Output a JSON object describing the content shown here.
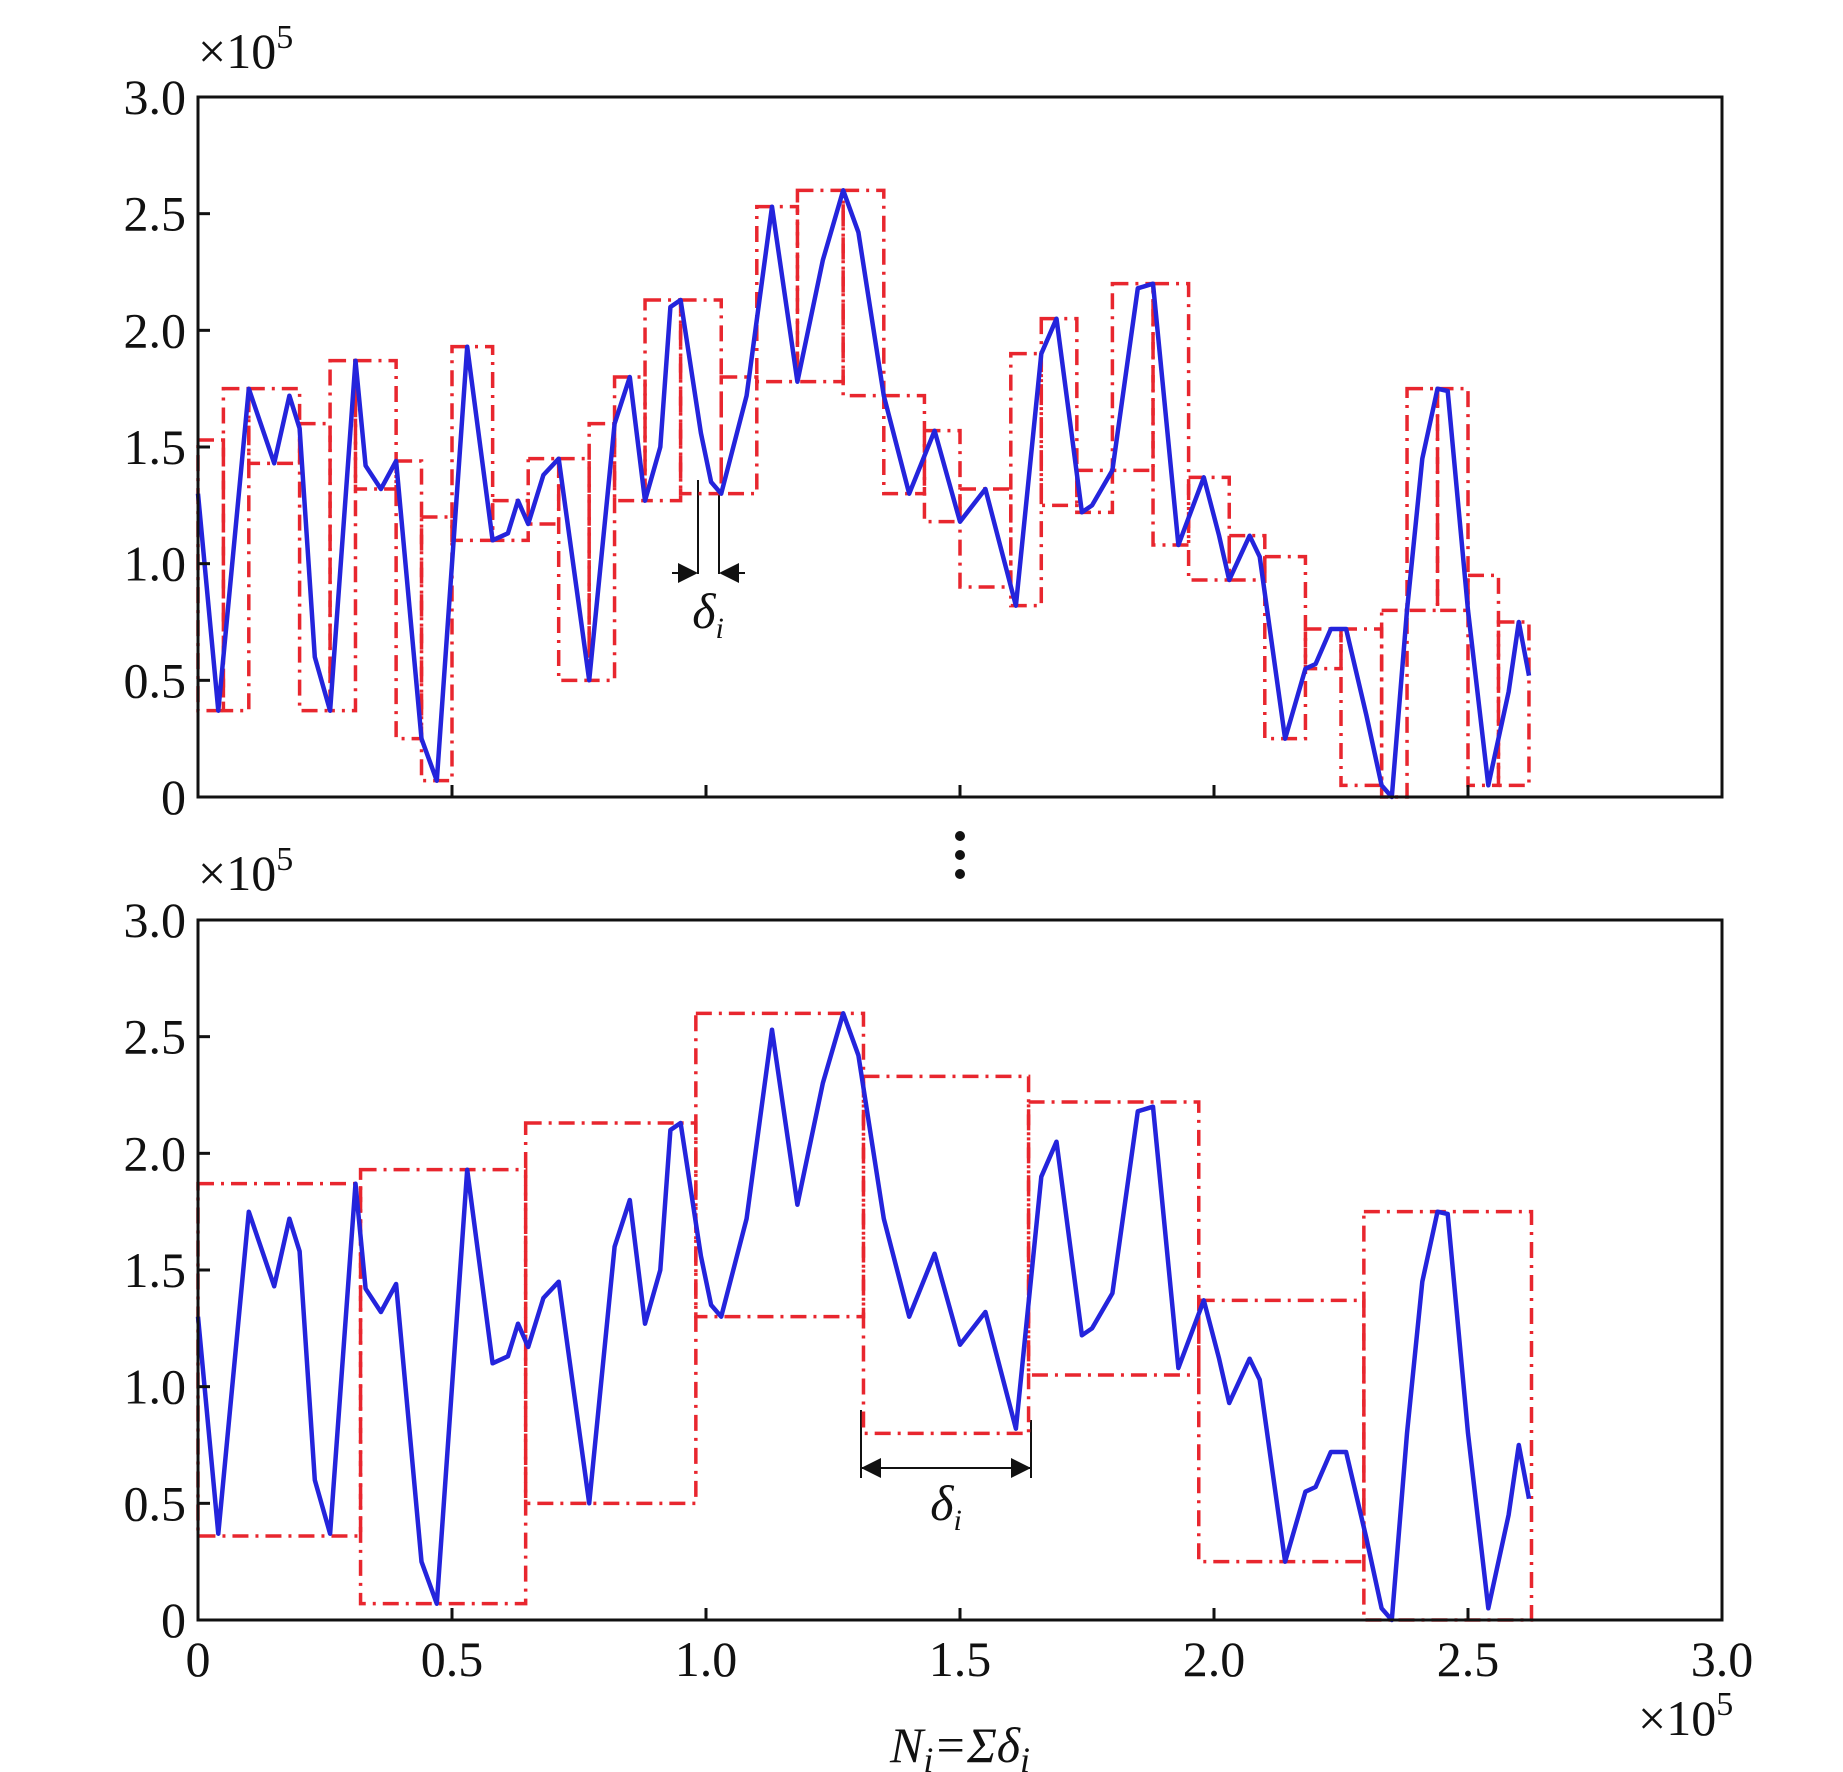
{
  "chart_data": {
    "type": "line",
    "multiplier": {
      "base": "×10",
      "exponent": "5"
    },
    "xlabel": {
      "n": "N",
      "sub1": "i",
      "eq": "=Σδ",
      "sub2": "i"
    },
    "delta": {
      "symbol": "δ",
      "subscript": "i"
    },
    "xlim": [
      0,
      3
    ],
    "ylim": [
      0,
      3
    ],
    "xticks": [
      0,
      0.5,
      {
        "value": 1,
        "label": "1.0"
      },
      1.5,
      {
        "value": 2,
        "label": "2.0"
      },
      2.5,
      {
        "value": 3,
        "label": "3.0"
      }
    ],
    "yticks": [
      0,
      0.5,
      {
        "value": 1,
        "label": "1.0"
      },
      1.5,
      {
        "value": 2,
        "label": "2.0"
      },
      2.5,
      {
        "value": 3,
        "label": "3.0"
      }
    ],
    "color": "#2424dc",
    "window_color": "#e8262e",
    "x": [
      0,
      0.04,
      0.1,
      0.15,
      0.18,
      0.2,
      0.23,
      0.26,
      0.31,
      0.33,
      0.36,
      0.39,
      0.44,
      0.47,
      0.53,
      0.58,
      0.61,
      0.63,
      0.65,
      0.68,
      0.71,
      0.77,
      0.82,
      0.85,
      0.88,
      0.91,
      0.93,
      0.95,
      0.99,
      1.01,
      1.03,
      1.08,
      1.13,
      1.18,
      1.23,
      1.27,
      1.3,
      1.35,
      1.4,
      1.45,
      1.5,
      1.55,
      1.61,
      1.66,
      1.69,
      1.74,
      1.76,
      1.8,
      1.85,
      1.88,
      1.93,
      1.98,
      2.01,
      2.03,
      2.07,
      2.09,
      2.14,
      2.18,
      2.2,
      2.23,
      2.26,
      2.3,
      2.33,
      2.35,
      2.38,
      2.41,
      2.44,
      2.46,
      2.5,
      2.54,
      2.58,
      2.6,
      2.62
    ],
    "values": [
      1.3,
      0.37,
      1.75,
      1.43,
      1.72,
      1.58,
      0.6,
      0.37,
      1.87,
      1.42,
      1.32,
      1.44,
      0.25,
      0.07,
      1.93,
      1.1,
      1.13,
      1.27,
      1.17,
      1.38,
      1.45,
      0.5,
      1.6,
      1.8,
      1.27,
      1.5,
      2.1,
      2.13,
      1.56,
      1.35,
      1.3,
      1.72,
      2.53,
      1.78,
      2.3,
      2.6,
      2.42,
      1.72,
      1.3,
      1.57,
      1.18,
      1.32,
      0.82,
      1.9,
      2.05,
      1.22,
      1.25,
      1.4,
      2.18,
      2.2,
      1.08,
      1.37,
      1.12,
      0.93,
      1.12,
      1.03,
      0.25,
      0.55,
      0.57,
      0.72,
      0.72,
      0.35,
      0.05,
      0,
      0.8,
      1.45,
      1.75,
      1.74,
      0.8,
      0.05,
      0.45,
      0.75,
      0.52
    ],
    "windows_top": {
      "x0": [
        0,
        0.05,
        0.1,
        0.2,
        0.26,
        0.31,
        0.39,
        0.44,
        0.5,
        0.58,
        0.65,
        0.71,
        0.77,
        0.82,
        0.88,
        0.95,
        1.03,
        1.1,
        1.18,
        1.27,
        1.35,
        1.43,
        1.5,
        1.6,
        1.66,
        1.73,
        1.8,
        1.88,
        1.95,
        2.03,
        2.1,
        2.18,
        2.25,
        2.33,
        2.38,
        2.44,
        2.5,
        2.56
      ],
      "x1": [
        0.05,
        0.1,
        0.2,
        0.26,
        0.31,
        0.39,
        0.44,
        0.5,
        0.58,
        0.65,
        0.71,
        0.77,
        0.82,
        0.88,
        0.95,
        1.03,
        1.1,
        1.18,
        1.27,
        1.35,
        1.43,
        1.5,
        1.6,
        1.66,
        1.73,
        1.8,
        1.88,
        1.95,
        2.03,
        2.1,
        2.18,
        2.25,
        2.33,
        2.38,
        2.44,
        2.5,
        2.56,
        2.62
      ],
      "low": [
        0.37,
        0.37,
        1.43,
        0.37,
        0.37,
        1.32,
        0.25,
        0.07,
        1.1,
        1.1,
        1.17,
        0.5,
        0.5,
        1.27,
        1.27,
        1.3,
        1.3,
        1.78,
        1.78,
        1.72,
        1.3,
        1.18,
        0.9,
        0.82,
        1.25,
        1.22,
        1.4,
        1.08,
        0.93,
        0.93,
        0.25,
        0.55,
        0.05,
        0,
        0.8,
        0.8,
        0.05,
        0.05
      ],
      "high": [
        1.53,
        1.75,
        1.75,
        1.6,
        1.87,
        1.87,
        1.44,
        1.2,
        1.93,
        1.27,
        1.45,
        1.45,
        1.6,
        1.8,
        2.13,
        2.13,
        1.8,
        2.53,
        2.6,
        2.6,
        1.72,
        1.57,
        1.32,
        1.9,
        2.05,
        1.4,
        2.2,
        2.2,
        1.37,
        1.12,
        1.03,
        0.72,
        0.72,
        0.8,
        1.75,
        1.75,
        0.95,
        0.75
      ]
    },
    "windows_bottom": {
      "x0": [
        0,
        0.32,
        0.645,
        0.98,
        1.31,
        1.635,
        1.97,
        2.295
      ],
      "x1": [
        0.32,
        0.645,
        0.98,
        1.31,
        1.635,
        1.97,
        2.295,
        2.625
      ],
      "low": [
        0.36,
        0.07,
        0.5,
        1.3,
        0.8,
        1.05,
        0.25,
        0
      ],
      "high": [
        1.87,
        1.93,
        2.13,
        2.6,
        2.33,
        2.22,
        1.37,
        1.75
      ]
    }
  }
}
